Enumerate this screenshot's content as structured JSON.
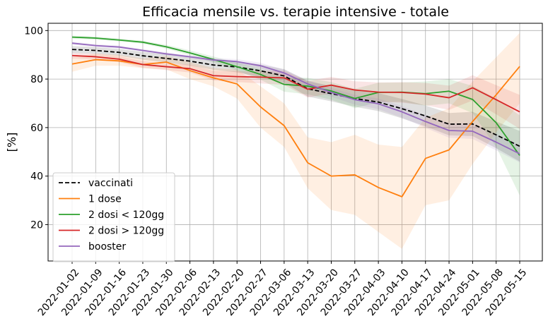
{
  "chart_data": {
    "type": "line",
    "title": "Efficacia mensile vs. terapie intensive - totale",
    "xlabel": "",
    "ylabel": "[%]",
    "ylim": [
      5,
      103
    ],
    "yticks": [
      20,
      40,
      60,
      80,
      100
    ],
    "grid": true,
    "legend_position": "lower-left",
    "categories": [
      "2022-01-02",
      "2022-01-09",
      "2022-01-16",
      "2022-01-23",
      "2022-01-30",
      "2022-02-06",
      "2022-02-13",
      "2022-02-20",
      "2022-02-27",
      "2022-03-06",
      "2022-03-13",
      "2022-03-20",
      "2022-03-27",
      "2022-04-03",
      "2022-04-10",
      "2022-04-17",
      "2022-04-24",
      "2022-05-01",
      "2022-05-08",
      "2022-05-15"
    ],
    "series": [
      {
        "name": "vaccinati",
        "color": "#000000",
        "dash": true,
        "values": [
          92.2,
          91.8,
          91.0,
          89.6,
          88.5,
          87.4,
          85.8,
          85.0,
          83.4,
          81.3,
          76.0,
          74.0,
          72.0,
          70.5,
          67.8,
          64.8,
          61.4,
          61.5,
          57.0,
          52.3
        ],
        "band_low": [
          90.8,
          90.4,
          89.6,
          88.0,
          86.8,
          85.6,
          83.8,
          82.8,
          80.8,
          78.5,
          72.8,
          70.8,
          68.6,
          66.8,
          63.8,
          60.5,
          56.8,
          56.5,
          51.5,
          46.0
        ],
        "band_high": [
          93.6,
          93.2,
          92.4,
          91.2,
          90.2,
          89.2,
          87.8,
          87.2,
          86.0,
          84.1,
          79.2,
          77.2,
          75.4,
          74.2,
          71.8,
          69.1,
          66.0,
          66.5,
          62.5,
          58.6
        ]
      },
      {
        "name": "1 dose",
        "color": "#ff7f0e",
        "dash": false,
        "values": [
          86.2,
          88.0,
          87.5,
          86.0,
          87.0,
          83.5,
          80.5,
          78.0,
          68.5,
          60.8,
          45.5,
          40.0,
          40.5,
          35.3,
          31.5,
          47.3,
          50.8,
          62.5,
          73.5,
          85.2
        ],
        "band_low": [
          83.0,
          85.5,
          85.5,
          84.5,
          84.0,
          80.0,
          77.0,
          72.0,
          60.0,
          52.0,
          35.0,
          26.0,
          24.0,
          17.0,
          10.0,
          28.0,
          30.0,
          45.0,
          58.0,
          70.0
        ],
        "band_high": [
          89.0,
          90.5,
          90.0,
          88.5,
          89.5,
          87.0,
          84.5,
          84.0,
          77.0,
          70.0,
          56.0,
          54.0,
          57.0,
          53.0,
          52.0,
          64.0,
          68.0,
          79.0,
          89.0,
          99.0
        ]
      },
      {
        "name": "2 dosi < 120gg",
        "color": "#2ca02c",
        "dash": false,
        "values": [
          97.3,
          96.9,
          96.1,
          95.2,
          93.3,
          90.8,
          88.1,
          85.1,
          81.9,
          77.8,
          77.1,
          75.1,
          72.0,
          74.5,
          74.6,
          74.0,
          75.0,
          71.6,
          62.0,
          48.5
        ],
        "band_low": [
          96.7,
          96.3,
          95.5,
          94.6,
          92.5,
          89.8,
          86.9,
          83.5,
          79.7,
          74.8,
          73.7,
          71.5,
          68.0,
          70.5,
          70.6,
          69.0,
          70.0,
          66.0,
          52.0,
          32.0
        ],
        "band_high": [
          97.9,
          97.5,
          96.7,
          95.8,
          94.1,
          91.8,
          89.3,
          86.7,
          84.1,
          80.8,
          80.5,
          78.7,
          76.0,
          78.5,
          78.6,
          79.0,
          80.0,
          77.2,
          72.0,
          65.0
        ]
      },
      {
        "name": "2 dosi > 120gg",
        "color": "#d62728",
        "dash": false,
        "values": [
          89.7,
          89.2,
          88.2,
          86.0,
          85.1,
          84.3,
          81.4,
          81.0,
          80.8,
          80.5,
          75.8,
          77.5,
          75.5,
          74.6,
          74.5,
          73.8,
          72.3,
          76.4,
          71.5,
          66.5
        ],
        "band_low": [
          88.5,
          88.0,
          87.0,
          84.6,
          83.7,
          82.7,
          79.4,
          78.8,
          78.2,
          77.6,
          72.4,
          74.1,
          71.9,
          70.6,
          70.3,
          69.2,
          67.3,
          71.2,
          65.5,
          59.5
        ],
        "band_high": [
          90.9,
          90.4,
          89.4,
          87.4,
          86.5,
          85.9,
          83.4,
          83.2,
          83.4,
          83.4,
          79.2,
          80.9,
          79.1,
          78.6,
          78.7,
          78.4,
          77.3,
          81.6,
          77.5,
          73.5
        ]
      },
      {
        "name": "booster",
        "color": "#9467bd",
        "dash": false,
        "values": [
          94.8,
          93.8,
          93.2,
          91.8,
          90.4,
          89.2,
          87.9,
          87.2,
          85.5,
          82.5,
          78.0,
          74.5,
          71.5,
          69.8,
          66.5,
          62.5,
          58.8,
          58.5,
          54.0,
          49.2
        ],
        "band_low": [
          94.2,
          93.2,
          92.6,
          91.2,
          89.8,
          88.6,
          87.1,
          86.2,
          84.3,
          81.1,
          76.4,
          72.7,
          69.5,
          67.6,
          64.1,
          59.9,
          55.8,
          55.3,
          50.6,
          45.6
        ],
        "band_high": [
          95.4,
          94.4,
          93.8,
          92.4,
          91.0,
          89.8,
          88.7,
          88.2,
          86.7,
          83.9,
          79.6,
          76.3,
          73.5,
          72.0,
          68.9,
          65.1,
          61.8,
          61.7,
          57.4,
          52.8
        ]
      }
    ]
  }
}
